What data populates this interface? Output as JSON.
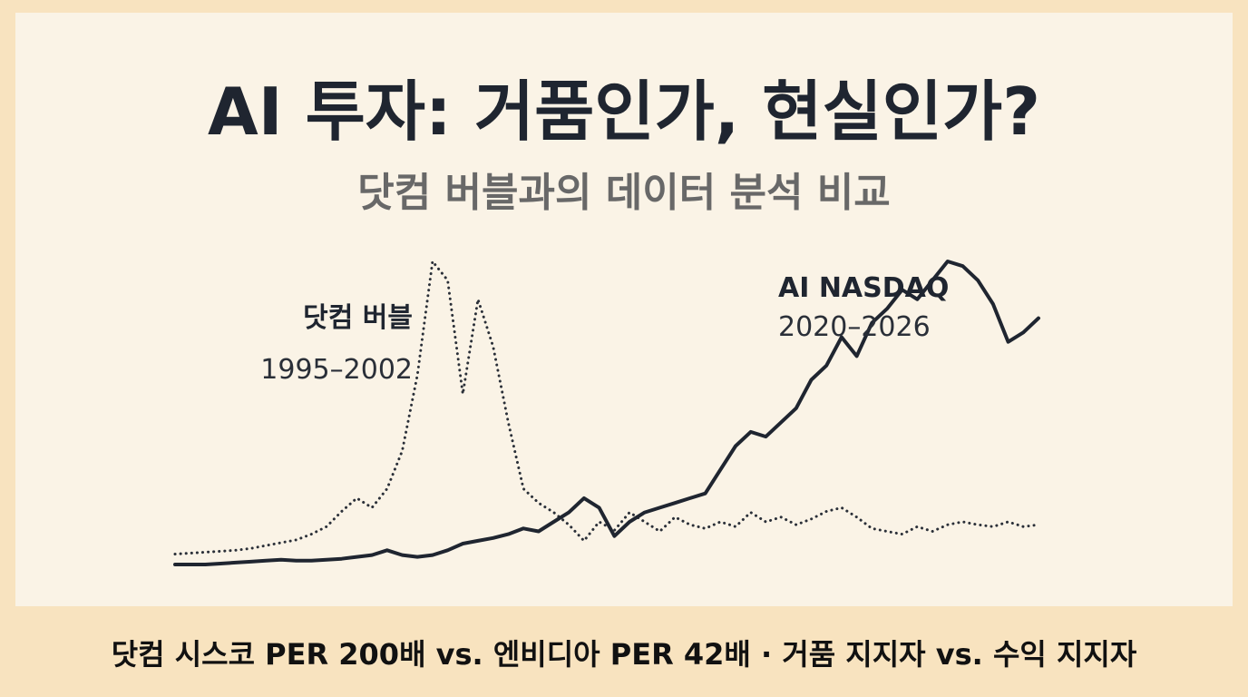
{
  "title": "AI 투자: 거품인가, 현실인가?",
  "subtitle": "닷컴 버블과의 데이터 분석 비교",
  "footer": "닷컴 시스코 PER 200배 vs. 엔비디아 PER 42배 · 거품 지지자 vs. 수익 지지자",
  "chart_data": {
    "type": "line",
    "title": "",
    "xlabel": "",
    "ylabel": "",
    "grid": false,
    "legend": "inline labels",
    "series": [
      {
        "name": "닷컴 버블",
        "period": "1995–2002",
        "style": "dotted",
        "color": "#2a2f38",
        "values": [
          11,
          12,
          13,
          14,
          15,
          17,
          20,
          23,
          26,
          32,
          40,
          56,
          70,
          60,
          80,
          120,
          200,
          320,
          300,
          180,
          280,
          230,
          150,
          80,
          65,
          55,
          42,
          25,
          45,
          36,
          55,
          45,
          35,
          50,
          42,
          38,
          45,
          40,
          55,
          45,
          50,
          42,
          48,
          56,
          60,
          50,
          38,
          35,
          32,
          40,
          35,
          42,
          45,
          42,
          40,
          45,
          40,
          42
        ]
      },
      {
        "name": "AI NASDAQ",
        "period": "2020–2026",
        "style": "solid",
        "color": "#1f2530",
        "values": [
          0,
          0,
          0,
          1,
          2,
          3,
          4,
          5,
          4,
          4,
          5,
          6,
          8,
          10,
          15,
          10,
          8,
          10,
          15,
          22,
          25,
          28,
          32,
          38,
          35,
          45,
          55,
          70,
          60,
          30,
          45,
          55,
          60,
          65,
          70,
          75,
          100,
          125,
          140,
          135,
          150,
          165,
          195,
          210,
          240,
          220,
          255,
          270,
          290,
          280,
          300,
          320,
          315,
          300,
          275,
          235,
          245,
          260
        ]
      }
    ]
  }
}
